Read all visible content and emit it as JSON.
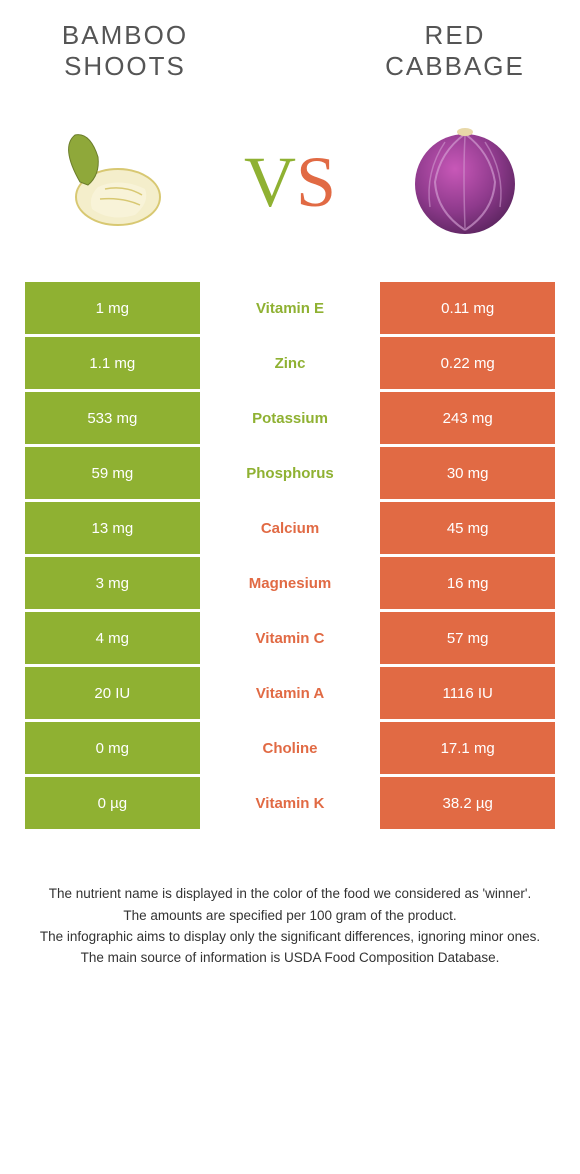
{
  "header": {
    "left_title": "Bamboo shoots",
    "right_title": "Red cabbage"
  },
  "colors": {
    "green": "#8fb132",
    "orange": "#e16a44"
  },
  "vs": {
    "v": "V",
    "s": "S"
  },
  "rows": [
    {
      "nutrient": "Vitamin E",
      "left": "1 mg",
      "right": "0.11 mg",
      "winner": "left"
    },
    {
      "nutrient": "Zinc",
      "left": "1.1 mg",
      "right": "0.22 mg",
      "winner": "left"
    },
    {
      "nutrient": "Potassium",
      "left": "533 mg",
      "right": "243 mg",
      "winner": "left"
    },
    {
      "nutrient": "Phosphorus",
      "left": "59 mg",
      "right": "30 mg",
      "winner": "left"
    },
    {
      "nutrient": "Calcium",
      "left": "13 mg",
      "right": "45 mg",
      "winner": "right"
    },
    {
      "nutrient": "Magnesium",
      "left": "3 mg",
      "right": "16 mg",
      "winner": "right"
    },
    {
      "nutrient": "Vitamin C",
      "left": "4 mg",
      "right": "57 mg",
      "winner": "right"
    },
    {
      "nutrient": "Vitamin A",
      "left": "20 IU",
      "right": "1116 IU",
      "winner": "right"
    },
    {
      "nutrient": "Choline",
      "left": "0 mg",
      "right": "17.1 mg",
      "winner": "right"
    },
    {
      "nutrient": "Vitamin K",
      "left": "0 µg",
      "right": "38.2 µg",
      "winner": "right"
    }
  ],
  "footer": {
    "line1": "The nutrient name is displayed in the color of the food we considered as 'winner'.",
    "line2": "The amounts are specified per 100 gram of the product.",
    "line3": "The infographic aims to display only the significant differences, ignoring minor ones.",
    "line4": "The main source of information is USDA Food Composition Database."
  }
}
